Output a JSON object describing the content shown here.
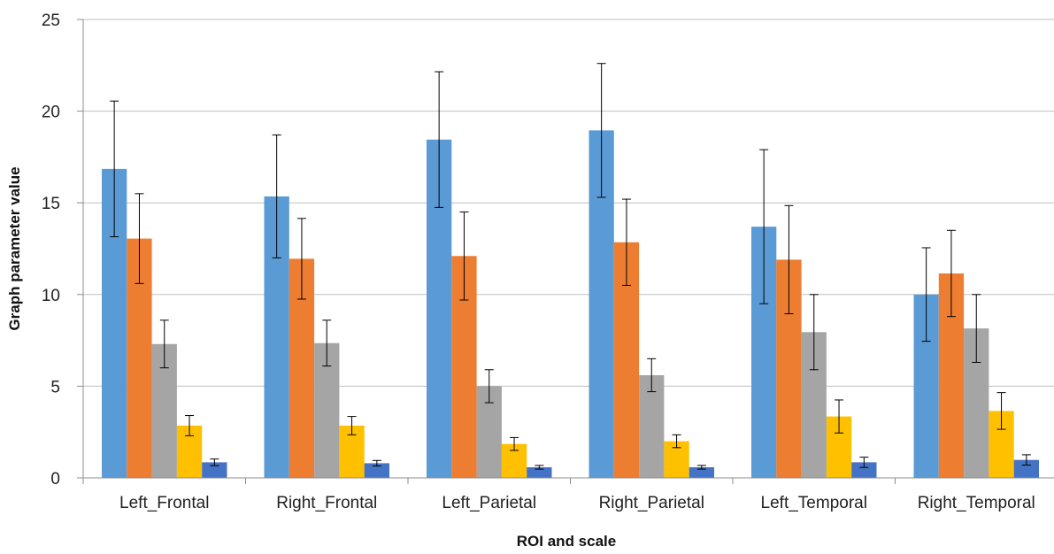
{
  "chart_data": {
    "type": "bar",
    "title": "",
    "xlabel": "ROI and scale",
    "ylabel": "Graph parameter value",
    "ylim": [
      0,
      25
    ],
    "yticks": [
      0,
      5,
      10,
      15,
      20,
      25
    ],
    "grid": "horizontal",
    "error_bars": true,
    "categories": [
      "Left_Frontal",
      "Right_Frontal",
      "Left_Parietal",
      "Right_Parietal",
      "Left_Temporal",
      "Right_Temporal"
    ],
    "series": [
      {
        "color": "#5B9BD5",
        "values": [
          16.85,
          15.35,
          18.45,
          18.95,
          13.7,
          10.0
        ],
        "errors": [
          3.7,
          3.35,
          3.7,
          3.65,
          4.2,
          2.55
        ]
      },
      {
        "color": "#ED7D31",
        "values": [
          13.05,
          11.95,
          12.1,
          12.85,
          11.9,
          11.15
        ],
        "errors": [
          2.45,
          2.2,
          2.4,
          2.35,
          2.95,
          2.35
        ]
      },
      {
        "color": "#A5A5A5",
        "values": [
          7.3,
          7.35,
          5.0,
          5.6,
          7.95,
          8.15
        ],
        "errors": [
          1.3,
          1.25,
          0.9,
          0.9,
          2.05,
          1.85
        ]
      },
      {
        "color": "#FFC000",
        "values": [
          2.85,
          2.85,
          1.85,
          2.0,
          3.35,
          3.65
        ],
        "errors": [
          0.55,
          0.5,
          0.35,
          0.35,
          0.9,
          1.0
        ]
      },
      {
        "color": "#4472C4",
        "values": [
          0.85,
          0.8,
          0.58,
          0.58,
          0.85,
          0.98
        ],
        "errors": [
          0.18,
          0.15,
          0.1,
          0.1,
          0.28,
          0.28
        ]
      }
    ]
  }
}
